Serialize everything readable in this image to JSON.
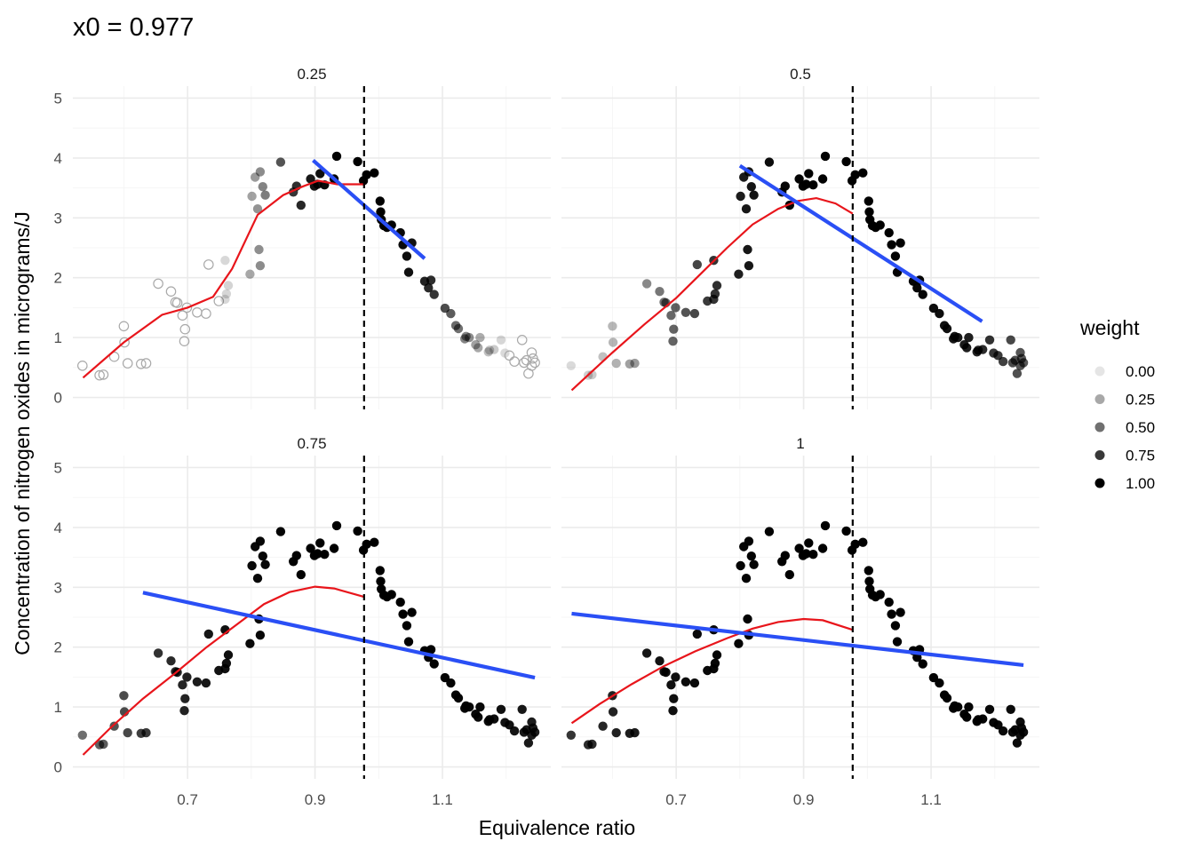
{
  "chart_data": {
    "type": "scatter",
    "title": "x0 =  0.977",
    "xlabel": "Equivalence ratio",
    "ylabel": "Concentration of nitrogen oxides in micrograms/J",
    "x_ticks": [
      0.7,
      0.9,
      1.1
    ],
    "x_tick_labels": [
      "0.7",
      "0.9",
      "1.1"
    ],
    "y_ticks": [
      0,
      1,
      2,
      3,
      4,
      5
    ],
    "y_tick_labels": [
      "0",
      "1",
      "2",
      "3",
      "4",
      "5"
    ],
    "xlim": [
      0.52,
      1.27
    ],
    "ylim": [
      -0.2,
      5.2
    ],
    "x0": 0.977,
    "grid": true,
    "legend": {
      "title": "weight",
      "position": "right",
      "entries": [
        "0.00",
        "0.25",
        "0.50",
        "0.75",
        "1.00"
      ],
      "values": [
        0.0,
        0.25,
        0.5,
        0.75,
        1.0
      ]
    },
    "points": [
      [
        0.535,
        0.53
      ],
      [
        0.562,
        0.37
      ],
      [
        0.568,
        0.38
      ],
      [
        0.585,
        0.68
      ],
      [
        0.6,
        1.19
      ],
      [
        0.601,
        0.92
      ],
      [
        0.606,
        0.57
      ],
      [
        0.627,
        0.56
      ],
      [
        0.635,
        0.57
      ],
      [
        0.654,
        1.9
      ],
      [
        0.674,
        1.77
      ],
      [
        0.681,
        1.59
      ],
      [
        0.684,
        1.58
      ],
      [
        0.692,
        1.37
      ],
      [
        0.695,
        0.94
      ],
      [
        0.696,
        1.14
      ],
      [
        0.699,
        1.5
      ],
      [
        0.715,
        1.42
      ],
      [
        0.729,
        1.4
      ],
      [
        0.733,
        2.22
      ],
      [
        0.749,
        1.61
      ],
      [
        0.759,
        2.29
      ],
      [
        0.759,
        1.64
      ],
      [
        0.761,
        1.73
      ],
      [
        0.764,
        1.87
      ],
      [
        0.798,
        2.06
      ],
      [
        0.801,
        3.36
      ],
      [
        0.806,
        3.68
      ],
      [
        0.81,
        3.15
      ],
      [
        0.812,
        2.47
      ],
      [
        0.814,
        2.2
      ],
      [
        0.814,
        3.77
      ],
      [
        0.818,
        3.52
      ],
      [
        0.822,
        3.38
      ],
      [
        0.846,
        3.93
      ],
      [
        0.866,
        3.43
      ],
      [
        0.871,
        3.53
      ],
      [
        0.878,
        3.21
      ],
      [
        0.893,
        3.65
      ],
      [
        0.899,
        3.53
      ],
      [
        0.904,
        3.56
      ],
      [
        0.908,
        3.74
      ],
      [
        0.915,
        3.55
      ],
      [
        0.93,
        3.65
      ],
      [
        0.934,
        4.03
      ],
      [
        0.967,
        3.94
      ],
      [
        0.976,
        3.62
      ],
      [
        0.981,
        3.72
      ],
      [
        0.993,
        3.75
      ],
      [
        1.002,
        3.28
      ],
      [
        1.003,
        3.1
      ],
      [
        1.004,
        2.97
      ],
      [
        1.008,
        2.87
      ],
      [
        1.013,
        2.84
      ],
      [
        1.02,
        2.88
      ],
      [
        1.034,
        2.75
      ],
      [
        1.038,
        2.55
      ],
      [
        1.044,
        2.36
      ],
      [
        1.047,
        2.09
      ],
      [
        1.052,
        2.58
      ],
      [
        1.072,
        1.94
      ],
      [
        1.078,
        1.83
      ],
      [
        1.082,
        1.96
      ],
      [
        1.087,
        1.72
      ],
      [
        1.104,
        1.49
      ],
      [
        1.113,
        1.4
      ],
      [
        1.121,
        1.2
      ],
      [
        1.125,
        1.15
      ],
      [
        1.135,
        0.98
      ],
      [
        1.137,
        1.02
      ],
      [
        1.142,
        1.0
      ],
      [
        1.152,
        0.88
      ],
      [
        1.156,
        0.83
      ],
      [
        1.159,
        1.0
      ],
      [
        1.172,
        0.76
      ],
      [
        1.174,
        0.79
      ],
      [
        1.181,
        0.8
      ],
      [
        1.192,
        0.96
      ],
      [
        1.198,
        0.74
      ],
      [
        1.205,
        0.7
      ],
      [
        1.213,
        0.6
      ],
      [
        1.225,
        0.96
      ],
      [
        1.228,
        0.58
      ],
      [
        1.232,
        0.62
      ],
      [
        1.235,
        0.4
      ],
      [
        1.24,
        0.53
      ],
      [
        1.24,
        0.75
      ],
      [
        1.242,
        0.65
      ],
      [
        1.245,
        0.58
      ]
    ],
    "panels": [
      {
        "label": "0.25",
        "span": 0.25,
        "fit_line": [
          [
            0.897,
            3.96
          ],
          [
            1.072,
            2.32
          ]
        ],
        "smooth": [
          [
            0.536,
            0.33
          ],
          [
            0.6,
            0.92
          ],
          [
            0.66,
            1.38
          ],
          [
            0.7,
            1.5
          ],
          [
            0.74,
            1.68
          ],
          [
            0.77,
            2.15
          ],
          [
            0.81,
            3.05
          ],
          [
            0.85,
            3.38
          ],
          [
            0.88,
            3.52
          ],
          [
            0.905,
            3.62
          ],
          [
            0.935,
            3.56
          ],
          [
            0.977,
            3.56
          ]
        ]
      },
      {
        "label": "0.5",
        "span": 0.5,
        "fit_line": [
          [
            0.8,
            3.87
          ],
          [
            1.18,
            1.27
          ]
        ],
        "smooth": [
          [
            0.536,
            0.12
          ],
          [
            0.6,
            0.75
          ],
          [
            0.65,
            1.22
          ],
          [
            0.7,
            1.66
          ],
          [
            0.74,
            2.08
          ],
          [
            0.78,
            2.5
          ],
          [
            0.82,
            2.89
          ],
          [
            0.86,
            3.15
          ],
          [
            0.89,
            3.28
          ],
          [
            0.92,
            3.33
          ],
          [
            0.95,
            3.24
          ],
          [
            0.977,
            3.07
          ]
        ]
      },
      {
        "label": "0.75",
        "span": 0.75,
        "fit_line": [
          [
            0.63,
            2.91
          ],
          [
            1.245,
            1.49
          ]
        ],
        "smooth": [
          [
            0.536,
            0.2
          ],
          [
            0.58,
            0.66
          ],
          [
            0.63,
            1.14
          ],
          [
            0.68,
            1.56
          ],
          [
            0.73,
            2.0
          ],
          [
            0.78,
            2.4
          ],
          [
            0.82,
            2.72
          ],
          [
            0.86,
            2.92
          ],
          [
            0.9,
            3.01
          ],
          [
            0.93,
            2.98
          ],
          [
            0.977,
            2.84
          ]
        ]
      },
      {
        "label": "1",
        "span": 1,
        "fit_line": [
          [
            0.536,
            2.56
          ],
          [
            1.245,
            1.7
          ]
        ],
        "smooth": [
          [
            0.536,
            0.73
          ],
          [
            0.58,
            1.05
          ],
          [
            0.63,
            1.38
          ],
          [
            0.68,
            1.68
          ],
          [
            0.73,
            1.93
          ],
          [
            0.78,
            2.15
          ],
          [
            0.82,
            2.31
          ],
          [
            0.86,
            2.42
          ],
          [
            0.9,
            2.47
          ],
          [
            0.93,
            2.45
          ],
          [
            0.977,
            2.29
          ]
        ]
      }
    ]
  }
}
